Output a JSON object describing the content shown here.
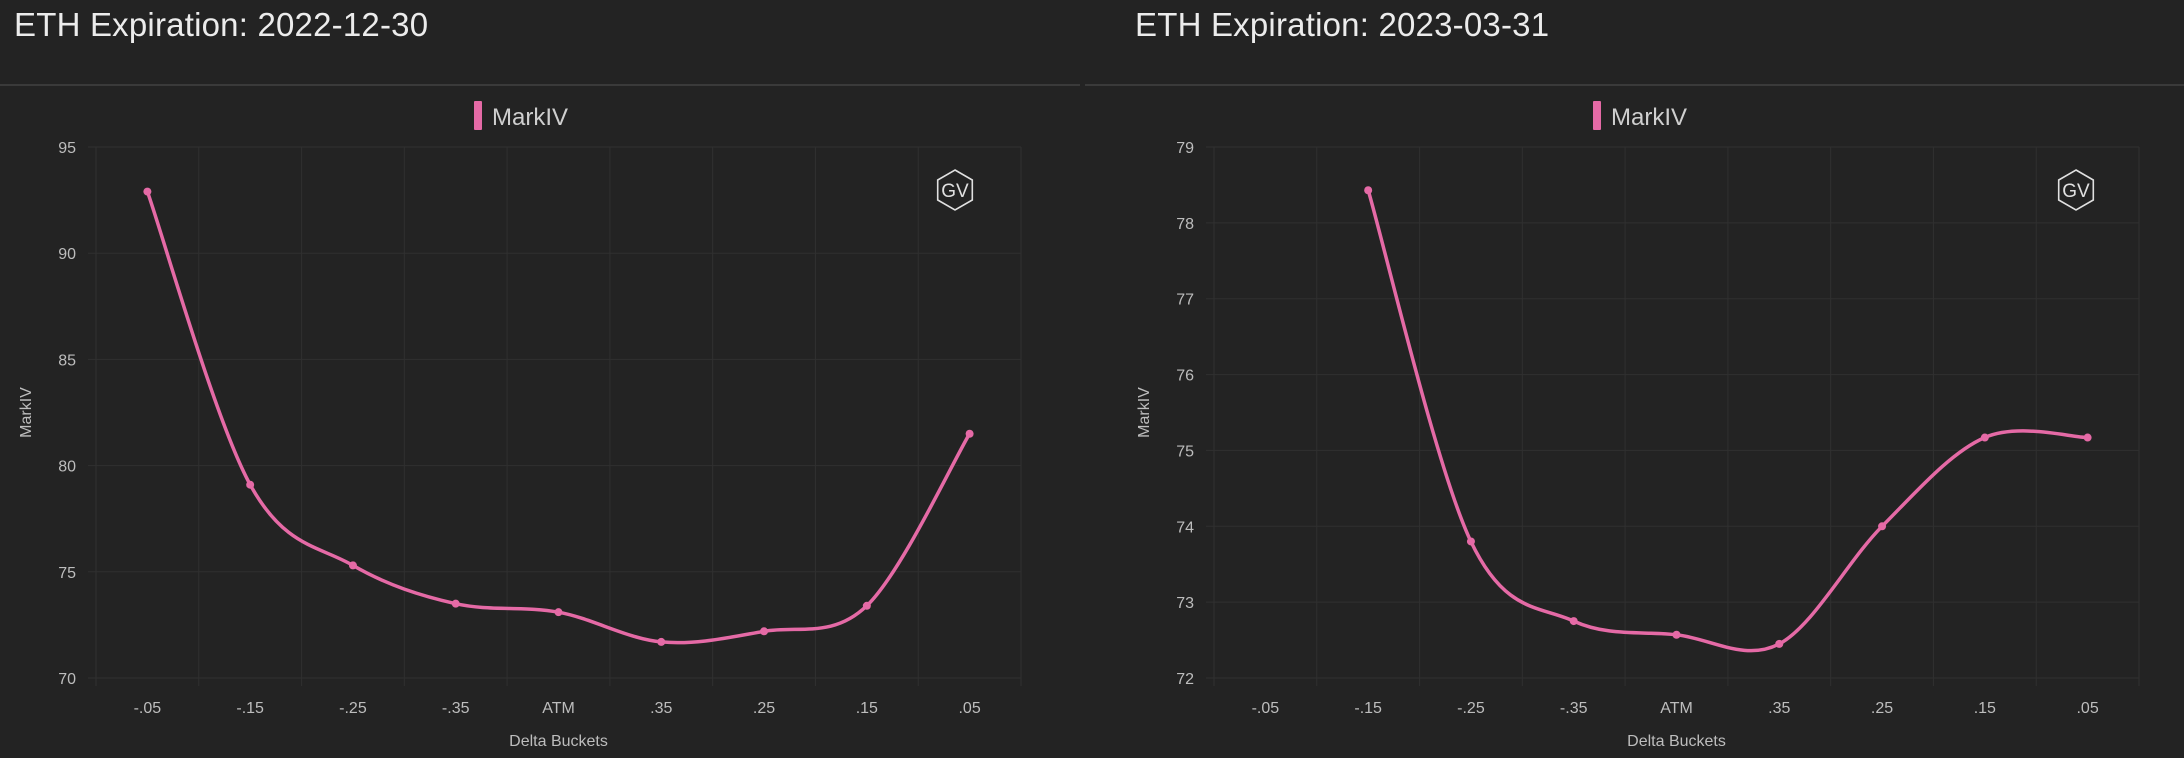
{
  "colors": {
    "background": "#232323",
    "grid": "#303030",
    "series": "#e56aa6",
    "text": "#bdbdbd"
  },
  "charts": [
    {
      "title": "ETH Expiration: 2022-12-30",
      "logo": "GV",
      "logo_icon": "hexagon-logo-icon"
    },
    {
      "title": "ETH Expiration: 2023-03-31",
      "logo": "GV",
      "logo_icon": "hexagon-logo-icon"
    }
  ],
  "chart_data": [
    {
      "type": "line",
      "title": "ETH Expiration: 2022-12-30",
      "xlabel": "Delta Buckets",
      "ylabel": "MarkIV",
      "legend": [
        "MarkIV"
      ],
      "legend_position": "top-center",
      "grid": true,
      "smooth": true,
      "categories": [
        "-.05",
        "-.15",
        "-.25",
        "-.35",
        "ATM",
        ".35",
        ".25",
        ".15",
        ".05"
      ],
      "y_ticks": [
        70,
        75,
        80,
        85,
        90,
        95
      ],
      "ylim": [
        70,
        95
      ],
      "series": [
        {
          "name": "MarkIV",
          "values": [
            92.9,
            79.1,
            75.3,
            73.5,
            73.1,
            71.7,
            72.2,
            73.4,
            81.5
          ]
        }
      ]
    },
    {
      "type": "line",
      "title": "ETH Expiration: 2023-03-31",
      "xlabel": "Delta Buckets",
      "ylabel": "MarkIV",
      "legend": [
        "MarkIV"
      ],
      "legend_position": "top-center",
      "grid": true,
      "smooth": true,
      "categories": [
        "-.05",
        "-.15",
        "-.25",
        "-.35",
        "ATM",
        ".35",
        ".25",
        ".15",
        ".05"
      ],
      "y_ticks": [
        72,
        73,
        74,
        75,
        76,
        77,
        78,
        79
      ],
      "ylim": [
        72,
        79
      ],
      "series": [
        {
          "name": "MarkIV",
          "values": [
            null,
            78.43,
            73.8,
            72.75,
            72.57,
            72.45,
            74.0,
            75.17,
            75.17
          ]
        }
      ]
    }
  ]
}
